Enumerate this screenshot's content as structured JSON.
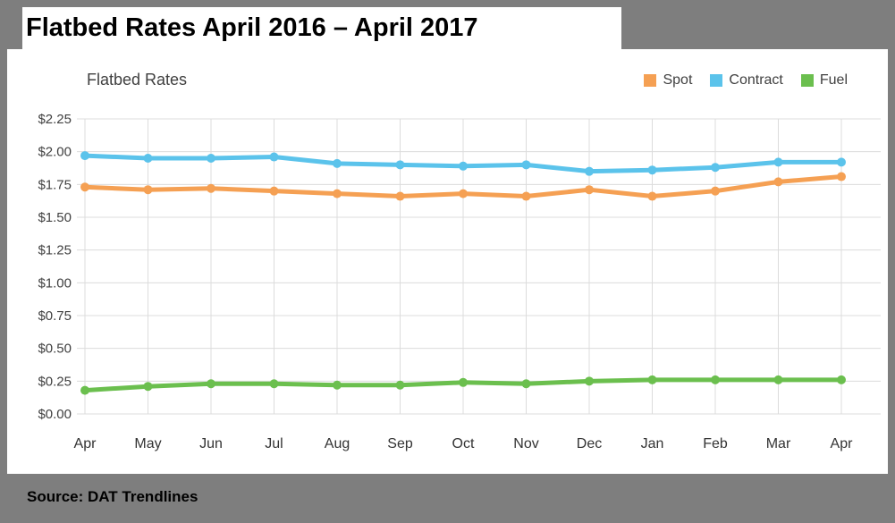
{
  "page": {
    "title": "Flatbed Rates April 2016 – April 2017",
    "source": "Source: DAT Trendlines"
  },
  "colors": {
    "background": "#7E7E7E",
    "panel": "#FFFFFF",
    "grid": "#DCDCDC",
    "axis_text": "#404040",
    "x_label_text": "#333333"
  },
  "chart_data": {
    "type": "line",
    "title": "Flatbed Rates",
    "categories": [
      "Apr",
      "May",
      "Jun",
      "Jul",
      "Aug",
      "Sep",
      "Oct",
      "Nov",
      "Dec",
      "Jan",
      "Feb",
      "Mar",
      "Apr"
    ],
    "series": [
      {
        "name": "Spot",
        "color": "#F5A053",
        "values": [
          1.73,
          1.71,
          1.72,
          1.7,
          1.68,
          1.66,
          1.68,
          1.66,
          1.71,
          1.66,
          1.7,
          1.77,
          1.81
        ]
      },
      {
        "name": "Contract",
        "color": "#5BC3EB",
        "values": [
          1.97,
          1.95,
          1.95,
          1.96,
          1.91,
          1.9,
          1.89,
          1.9,
          1.85,
          1.86,
          1.88,
          1.92,
          1.92
        ]
      },
      {
        "name": "Fuel",
        "color": "#6BBF4E",
        "values": [
          0.18,
          0.21,
          0.23,
          0.23,
          0.22,
          0.22,
          0.24,
          0.23,
          0.25,
          0.26,
          0.26,
          0.26,
          0.26
        ]
      }
    ],
    "y_ticks": [
      "$0.00",
      "$0.25",
      "$0.50",
      "$0.75",
      "$1.00",
      "$1.25",
      "$1.50",
      "$1.75",
      "$2.00",
      "$2.25"
    ],
    "y_tick_step": 0.25,
    "ylim": [
      0,
      2.25
    ],
    "grid": true,
    "legend_position": "top-right"
  }
}
